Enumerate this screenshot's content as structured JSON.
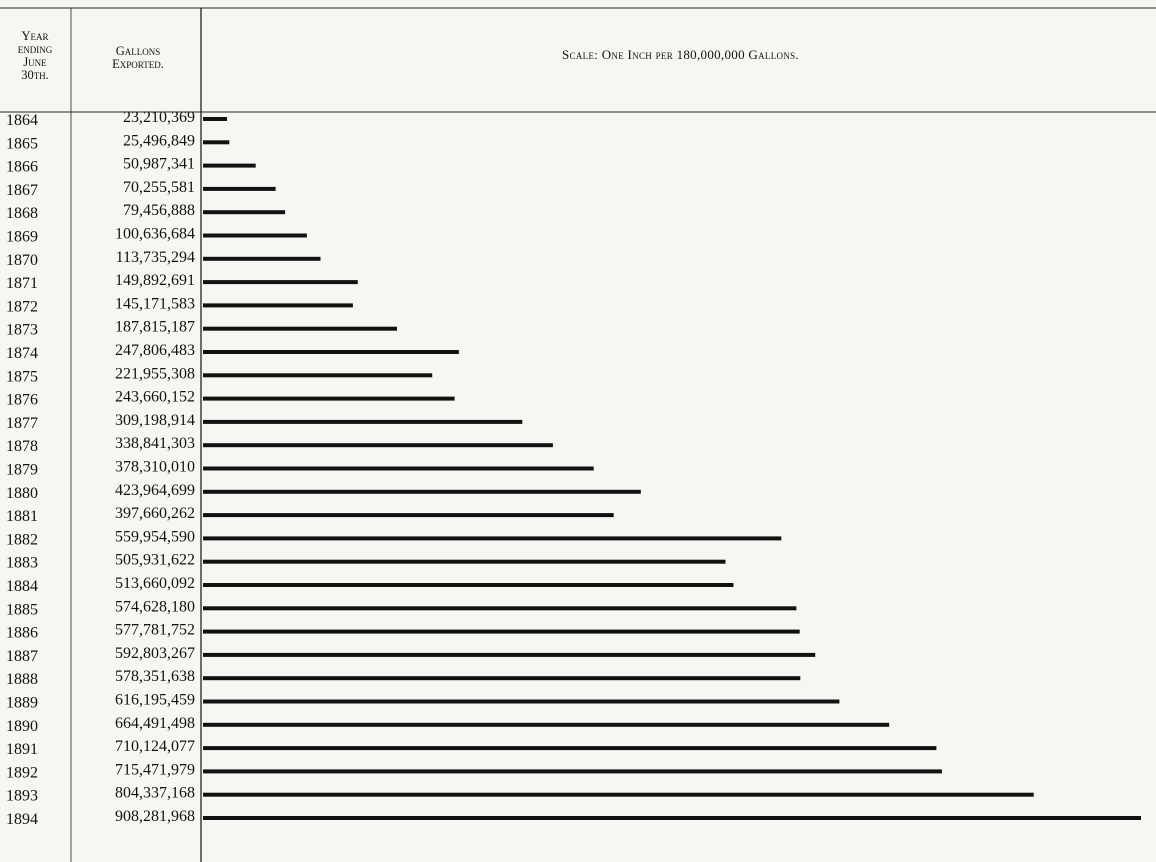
{
  "headers": {
    "year_line1": "Year",
    "year_line2": "ending",
    "year_line3": "June",
    "year_line4": "30th.",
    "gallons_line1": "Gallons",
    "gallons_line2": "Exported.",
    "scale": "Scale: One Inch per 180,000,000 Gallons."
  },
  "chart_data": {
    "type": "bar",
    "orientation": "horizontal",
    "categories": [
      "1864",
      "1865",
      "1866",
      "1867",
      "1868",
      "1869",
      "1870",
      "1871",
      "1872",
      "1873",
      "1874",
      "1875",
      "1876",
      "1877",
      "1878",
      "1879",
      "1880",
      "1881",
      "1882",
      "1883",
      "1884",
      "1885",
      "1886",
      "1887",
      "1888",
      "1889",
      "1890",
      "1891",
      "1892",
      "1893",
      "1894"
    ],
    "value_labels": [
      "23,210,369",
      "25,496,849",
      "50,987,341",
      "70,255,581",
      "79,456,888",
      "100,636,684",
      "113,735,294",
      "149,892,691",
      "145,171,583",
      "187,815,187",
      "247,806,483",
      "221,955,308",
      "243,660,152",
      "309,198,914",
      "338,841,303",
      "378,310,010",
      "423,964,699",
      "397,660,262",
      "559,954,590",
      "505,931,622",
      "513,660,092",
      "574,628,180",
      "577,781,752",
      "592,803,267",
      "578,351,638",
      "616,195,459",
      "664,491,498",
      "710,124,077",
      "715,471,979",
      "804,337,168",
      "908,281,968"
    ],
    "values": [
      23210369,
      25496849,
      50987341,
      70255581,
      79456888,
      100636684,
      113735294,
      149892691,
      145171583,
      187815187,
      247806483,
      221955308,
      243660152,
      309198914,
      338841303,
      378310010,
      423964699,
      397660262,
      559954590,
      505931622,
      513660092,
      574628180,
      577781752,
      592803267,
      578351638,
      616195459,
      664491498,
      710124077,
      715471979,
      804337168,
      908281968
    ],
    "title": "Scale: One Inch per 180,000,000 Gallons.",
    "xlabel": "",
    "ylabel": "",
    "xlim": [
      0,
      908281968
    ],
    "grid": false,
    "bar_color": "#111111"
  }
}
